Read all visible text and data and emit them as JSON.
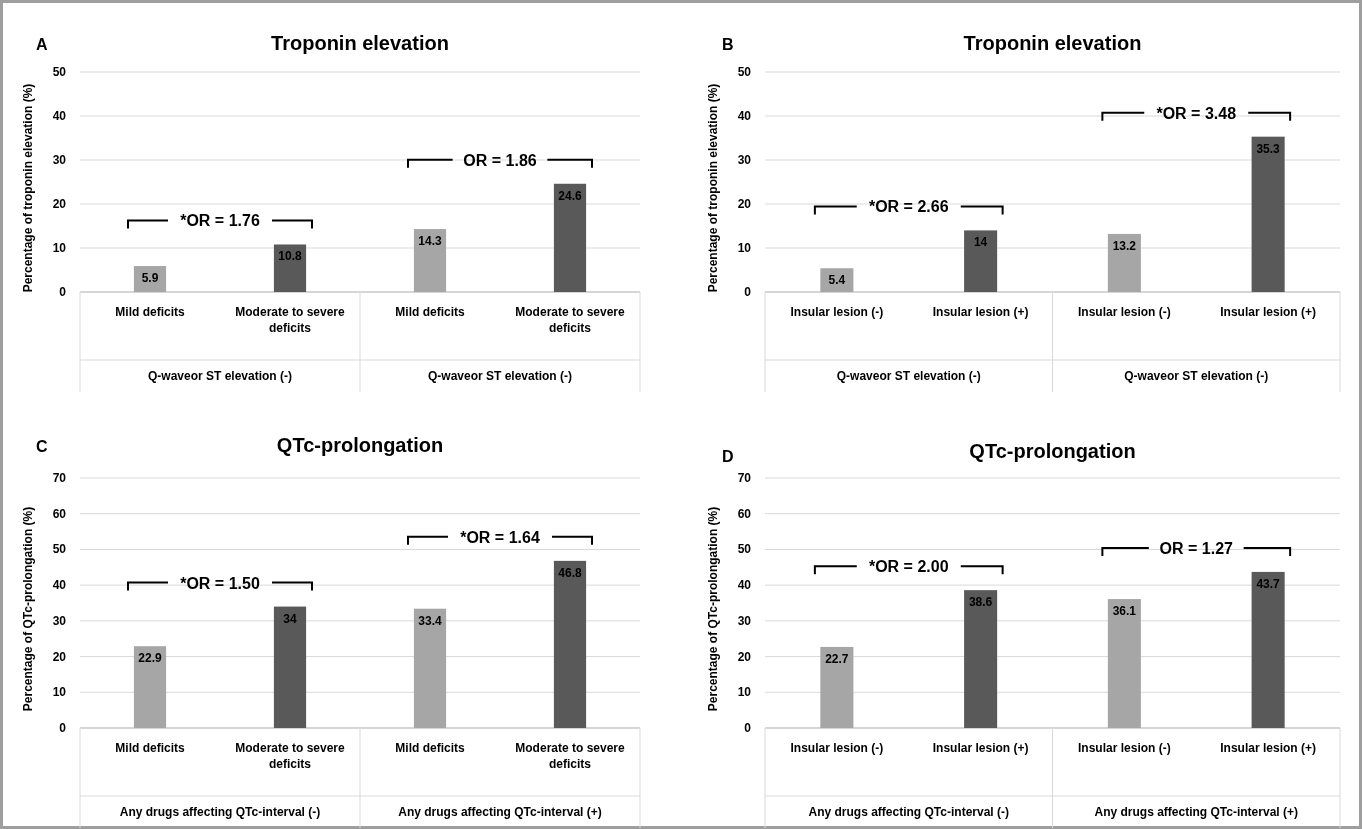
{
  "chart_data": [
    {
      "type": "bar",
      "title": "Troponin elevation",
      "ylabel": "Percentage of troponin elevation (%)",
      "categories": [
        "Mild deficits",
        "Moderate to severe deficits",
        "Mild deficits",
        "Moderate to severe deficits"
      ],
      "values": [
        5.9,
        10.8,
        14.3,
        24.6
      ],
      "colors": [
        "#a6a6a6",
        "#595959",
        "#a6a6a6",
        "#595959"
      ],
      "data_labels": true,
      "ylim": [
        0,
        50
      ],
      "yticks": [
        0,
        10,
        20,
        30,
        40,
        50
      ],
      "grid": "y",
      "annotations": [
        "A",
        "Q-waveor ST elevation (-)",
        "Q-waveor ST elevation (-)",
        "*OR = 1.76",
        "OR = 1.86"
      ]
    },
    {
      "type": "bar",
      "title": "Troponin elevation",
      "ylabel": "Percentage of troponin elevation (%)",
      "categories": [
        "Insular lesion (-)",
        "Insular lesion (+)",
        "Insular lesion (-)",
        "Insular lesion (+)"
      ],
      "values": [
        5.4,
        14,
        13.2,
        35.3
      ],
      "colors": [
        "#a6a6a6",
        "#595959",
        "#a6a6a6",
        "#595959"
      ],
      "data_labels": true,
      "ylim": [
        0,
        50
      ],
      "yticks": [
        0,
        10,
        20,
        30,
        40,
        50
      ],
      "grid": "y",
      "annotations": [
        "B",
        "Q-waveor ST elevation (-)",
        "Q-waveor ST elevation (-)",
        "*OR = 2.66",
        "*OR = 3.48"
      ]
    },
    {
      "type": "bar",
      "title": "QTc-prolongation",
      "ylabel": "Percentage of QTc-prolongation (%)",
      "categories": [
        "Mild deficits",
        "Moderate to severe deficits",
        "Mild deficits",
        "Moderate to severe deficits"
      ],
      "values": [
        22.9,
        34,
        33.4,
        46.8
      ],
      "colors": [
        "#a6a6a6",
        "#595959",
        "#a6a6a6",
        "#595959"
      ],
      "data_labels": true,
      "ylim": [
        0,
        70
      ],
      "yticks": [
        0,
        10,
        20,
        30,
        40,
        50,
        60,
        70
      ],
      "grid": "y",
      "annotations": [
        "C",
        "Any drugs affecting QTc-interval (-)",
        "Any drugs affecting QTc-interval (+)",
        "*OR = 1.50",
        "*OR = 1.64"
      ]
    },
    {
      "type": "bar",
      "title": "QTc-prolongation",
      "ylabel": "Percentage of QTc-prolongation (%)",
      "categories": [
        "Insular lesion (-)",
        "Insular lesion (+)",
        "Insular lesion (-)",
        "Insular lesion (+)"
      ],
      "values": [
        22.7,
        38.6,
        36.1,
        43.7
      ],
      "colors": [
        "#a6a6a6",
        "#595959",
        "#a6a6a6",
        "#595959"
      ],
      "data_labels": true,
      "ylim": [
        0,
        70
      ],
      "yticks": [
        0,
        10,
        20,
        30,
        40,
        50,
        60,
        70
      ],
      "grid": "y",
      "annotations": [
        "D",
        "Any drugs affecting QTc-interval (-)",
        "Any drugs affecting QTc-interval (+)",
        "*OR = 2.00",
        "OR = 1.27"
      ]
    }
  ]
}
